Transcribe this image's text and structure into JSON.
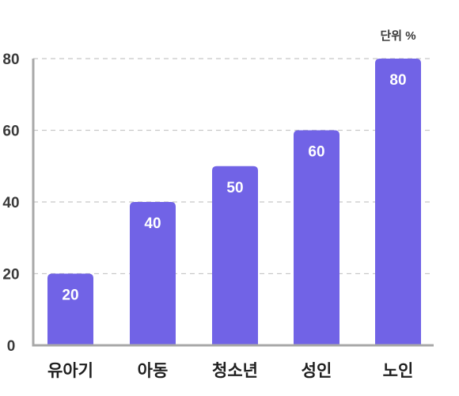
{
  "chart_data": {
    "type": "bar",
    "categories": [
      "유아기",
      "아동",
      "청소년",
      "성인",
      "노인"
    ],
    "values": [
      20,
      40,
      50,
      60,
      80
    ],
    "unit_label": "단위 %",
    "title": "",
    "xlabel": "",
    "ylabel": "",
    "ylim": [
      0,
      80
    ],
    "yticks": [
      0,
      20,
      40,
      60,
      80
    ],
    "grid": true,
    "legend": "none",
    "bar_color": "#7163E6",
    "grid_color": "#c8c8c8",
    "axis_color": "#a8a8a8"
  }
}
